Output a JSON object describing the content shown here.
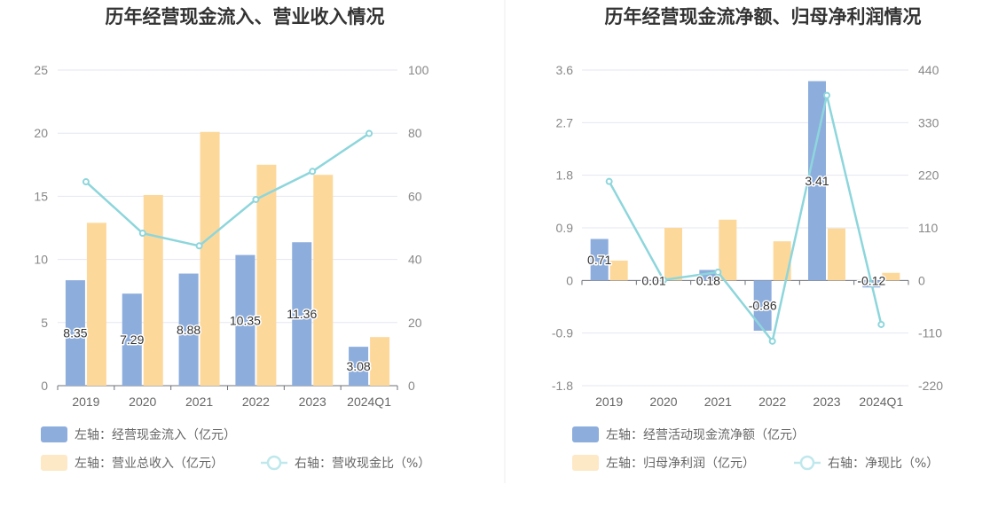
{
  "charts": [
    {
      "chart_data": {
        "type": "bar",
        "title": "历年经营现金流入、营业收入情况",
        "categories": [
          "2019",
          "2020",
          "2021",
          "2022",
          "2023",
          "2024Q1"
        ],
        "left_axis": {
          "min": 0,
          "max": 25,
          "ticks": [
            0,
            5,
            10,
            15,
            20,
            25
          ]
        },
        "right_axis": {
          "min": 0,
          "max": 100,
          "ticks": [
            0,
            20,
            40,
            60,
            80,
            100
          ]
        },
        "series": [
          {
            "name": "左轴：经营现金流入（亿元）",
            "type": "bar",
            "axis": "left",
            "color": "#8daddc",
            "values": [
              8.35,
              7.29,
              8.88,
              10.35,
              11.36,
              3.08
            ],
            "labels": [
              "8.35",
              "7.29",
              "8.88",
              "10.35",
              "11.36",
              "3.08"
            ]
          },
          {
            "name": "左轴：营业总收入（亿元）",
            "type": "bar",
            "axis": "left",
            "color": "#fdd89b",
            "values": [
              12.9,
              15.1,
              20.1,
              17.5,
              16.7,
              3.85
            ]
          },
          {
            "name": "右轴：营收现金比（%）",
            "type": "line",
            "axis": "right",
            "color": "#8dd6dc",
            "values": [
              64.6,
              48.3,
              44.3,
              59.0,
              67.9,
              79.9
            ]
          }
        ],
        "grid": true,
        "legend_position": "bottom-left"
      }
    },
    {
      "chart_data": {
        "type": "bar",
        "title": "历年经营现金流净额、归母净利润情况",
        "categories": [
          "2019",
          "2020",
          "2021",
          "2022",
          "2023",
          "2024Q1"
        ],
        "left_axis": {
          "min": -1.8,
          "max": 3.6,
          "ticks": [
            -1.8,
            -0.9,
            0,
            0.9,
            1.8,
            2.7,
            3.6
          ],
          "tick_labels": [
            "-1.8",
            "-0.9",
            "0",
            "0.9",
            "1.8",
            "2.7",
            "3.6"
          ]
        },
        "right_axis": {
          "min": -220,
          "max": 440,
          "ticks": [
            -220,
            -110,
            0,
            110,
            220,
            330,
            440
          ]
        },
        "series": [
          {
            "name": "左轴：经营活动现金流净额（亿元）",
            "type": "bar",
            "axis": "left",
            "color": "#8daddc",
            "values": [
              0.71,
              0.01,
              0.18,
              -0.86,
              3.41,
              -0.12
            ],
            "labels": [
              "0.71",
              "0.01",
              "0.18",
              "-0.86",
              "3.41",
              "-0.12"
            ]
          },
          {
            "name": "左轴：归母净利润（亿元）",
            "type": "bar",
            "axis": "left",
            "color": "#fdd89b",
            "values": [
              0.34,
              0.9,
              1.04,
              0.67,
              0.89,
              0.13
            ]
          },
          {
            "name": "右轴：净现比（%）",
            "type": "line",
            "axis": "right",
            "color": "#8dd6dc",
            "values": [
              207,
              1.1,
              17.4,
              -127,
              387,
              -92
            ]
          }
        ],
        "grid": true,
        "legend_position": "bottom-left"
      }
    }
  ]
}
